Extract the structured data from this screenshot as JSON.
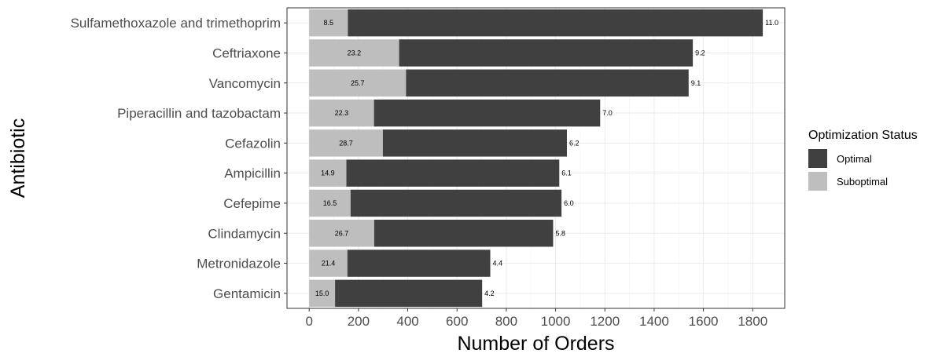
{
  "chart_data": {
    "type": "bar",
    "orientation": "horizontal",
    "stacked": true,
    "categories": [
      "Sulfamethoxazole and trimethoprim",
      "Ceftriaxone",
      "Vancomycin",
      "Piperacillin and tazobactam",
      "Cefazolin",
      "Ampicillin",
      "Cefepime",
      "Clindamycin",
      "Metronidazole",
      "Gentamicin"
    ],
    "series": [
      {
        "name": "Suboptimal",
        "color": "#bebebe",
        "values": [
          157,
          365,
          393,
          263,
          299,
          151,
          168,
          264,
          155,
          105
        ],
        "labels": [
          "8.5",
          "23.2",
          "25.7",
          "22.3",
          "28.7",
          "14.9",
          "16.5",
          "26.7",
          "21.4",
          "15.0"
        ]
      },
      {
        "name": "Optimal",
        "color": "#404040",
        "values": [
          1684,
          1192,
          1147,
          918,
          747,
          864,
          856,
          726,
          580,
          597
        ],
        "labels": [
          "11.0",
          "9.2",
          "9.1",
          "7.0",
          "6.2",
          "6.1",
          "6.0",
          "5.8",
          "4.4",
          "4.2"
        ]
      }
    ],
    "xlabel": "Number of Orders",
    "ylabel": "Antibiotic",
    "xticks": [
      0,
      200,
      400,
      600,
      800,
      1000,
      1200,
      1400,
      1600,
      1800
    ],
    "xlim": [
      -90,
      1930
    ],
    "grid": true,
    "theme": "bw",
    "legend": {
      "title": "Optimization Status",
      "position": "right",
      "entries": [
        "Optimal",
        "Suboptimal"
      ]
    }
  }
}
